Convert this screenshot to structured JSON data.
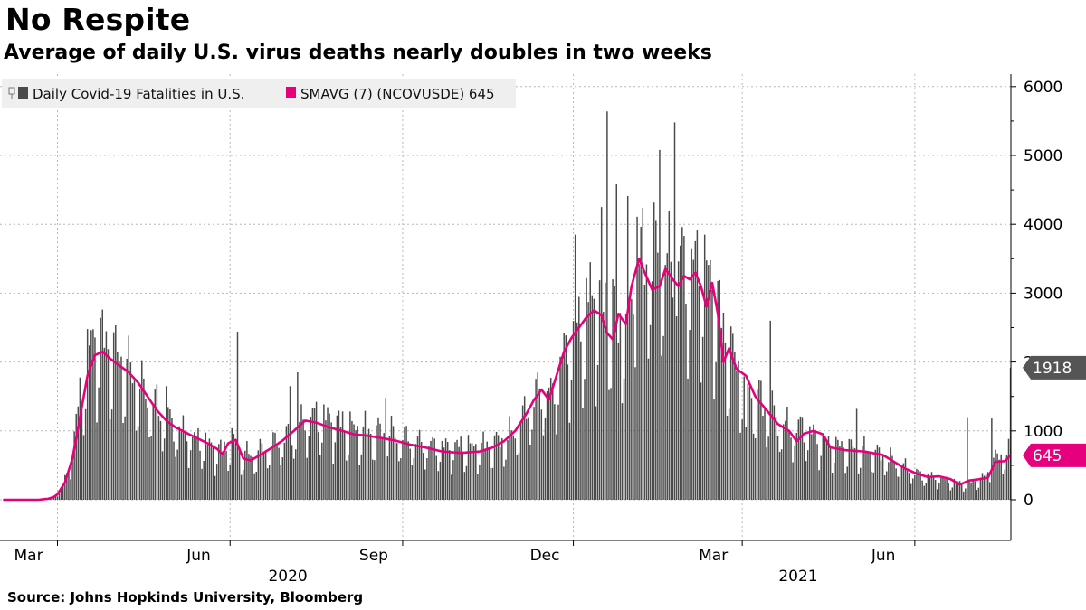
{
  "header": {
    "title": "No Respite",
    "subtitle": "Average of daily U.S. virus deaths nearly doubles in two weeks",
    "source": "Source: Johns Hopkinds University, Bloomberg"
  },
  "colors": {
    "bars": "#4a4a4a",
    "average_line": "#e6007e",
    "grid": "#b8b8b8",
    "bar_tag": "#555555",
    "avg_tag": "#e6007e"
  },
  "chart_data": {
    "type": "bar",
    "title": "Average of daily U.S. virus deaths nearly doubles in two weeks",
    "xlabel": "",
    "ylabel": "",
    "ylim": [
      -550,
      6100
    ],
    "yticks": [
      0,
      1000,
      2000,
      3000,
      4000,
      5000,
      6000
    ],
    "ytick_labels": [
      "0",
      "1000",
      "2000",
      "3000",
      "4000",
      "5000",
      "6000"
    ],
    "x_months": [
      {
        "label": "Mar",
        "day": 0
      },
      {
        "label": "Jun",
        "day": 92
      },
      {
        "label": "Sep",
        "day": 184
      },
      {
        "label": "Dec",
        "day": 275
      },
      {
        "label": "Mar",
        "day": 365
      },
      {
        "label": "Jun",
        "day": 457
      }
    ],
    "x_years": [
      {
        "label": "2020",
        "day": 123
      },
      {
        "label": "2021",
        "day": 395
      }
    ],
    "x_range_days": [
      -29,
      513
    ],
    "grid": true,
    "legend_position": "top-left",
    "legend": [
      {
        "name": "Daily Covid-19 Fatalities in U.S.",
        "marker": "bar"
      },
      {
        "name": "SMAVG (7) (NCOVUSDE) 645",
        "marker": "line"
      }
    ],
    "daily_anchors": [
      [
        -29,
        0
      ],
      [
        -10,
        0
      ],
      [
        -5,
        10
      ],
      [
        -2,
        30
      ],
      [
        0,
        80
      ],
      [
        3,
        200
      ],
      [
        6,
        420
      ],
      [
        9,
        900
      ],
      [
        12,
        1400
      ],
      [
        15,
        1850
      ],
      [
        18,
        2150
      ],
      [
        22,
        2250
      ],
      [
        25,
        2150
      ],
      [
        30,
        2000
      ],
      [
        35,
        1900
      ],
      [
        40,
        1700
      ],
      [
        45,
        1500
      ],
      [
        52,
        1300
      ],
      [
        58,
        1100
      ],
      [
        65,
        950
      ],
      [
        72,
        850
      ],
      [
        80,
        760
      ],
      [
        85,
        690
      ],
      [
        90,
        700
      ],
      [
        93,
        820
      ],
      [
        98,
        650
      ],
      [
        104,
        600
      ],
      [
        110,
        700
      ],
      [
        117,
        780
      ],
      [
        123,
        870
      ],
      [
        128,
        1000
      ],
      [
        135,
        1150
      ],
      [
        142,
        1120
      ],
      [
        150,
        1050
      ],
      [
        160,
        950
      ],
      [
        170,
        930
      ],
      [
        178,
        900
      ],
      [
        186,
        830
      ],
      [
        195,
        760
      ],
      [
        205,
        720
      ],
      [
        215,
        730
      ],
      [
        225,
        720
      ],
      [
        232,
        760
      ],
      [
        238,
        820
      ],
      [
        243,
        900
      ],
      [
        248,
        1100
      ],
      [
        252,
        1300
      ],
      [
        256,
        1450
      ],
      [
        260,
        1550
      ],
      [
        263,
        1380
      ],
      [
        268,
        1850
      ],
      [
        275,
        2250
      ],
      [
        280,
        2450
      ],
      [
        285,
        2650
      ],
      [
        290,
        2750
      ],
      [
        295,
        2650
      ],
      [
        299,
        2350
      ],
      [
        303,
        2600
      ],
      [
        307,
        2800
      ],
      [
        310,
        3100
      ],
      [
        314,
        3400
      ],
      [
        318,
        3300
      ],
      [
        322,
        3250
      ],
      [
        326,
        3150
      ],
      [
        330,
        3300
      ],
      [
        334,
        3200
      ],
      [
        338,
        3150
      ],
      [
        342,
        3250
      ],
      [
        346,
        3100
      ],
      [
        350,
        2850
      ],
      [
        353,
        2550
      ],
      [
        356,
        2200
      ],
      [
        360,
        1950
      ],
      [
        365,
        1700
      ],
      [
        370,
        1500
      ],
      [
        375,
        1350
      ],
      [
        380,
        1200
      ],
      [
        385,
        1050
      ],
      [
        392,
        950
      ],
      [
        397,
        1000
      ],
      [
        403,
        880
      ],
      [
        410,
        760
      ],
      [
        420,
        720
      ],
      [
        430,
        680
      ],
      [
        440,
        600
      ],
      [
        448,
        500
      ],
      [
        456,
        380
      ],
      [
        462,
        330
      ],
      [
        470,
        290
      ],
      [
        478,
        240
      ],
      [
        485,
        230
      ],
      [
        492,
        270
      ],
      [
        496,
        380
      ],
      [
        499,
        530
      ],
      [
        503,
        620
      ],
      [
        506,
        640
      ],
      [
        508,
        645
      ]
    ],
    "daily_spikes": [
      [
        58,
        1650
      ],
      [
        96,
        2440
      ],
      [
        124,
        1650
      ],
      [
        128,
        1850
      ],
      [
        175,
        1480
      ],
      [
        276,
        3850
      ],
      [
        284,
        3450
      ],
      [
        290,
        4250
      ],
      [
        293,
        5640
      ],
      [
        298,
        4580
      ],
      [
        304,
        4410
      ],
      [
        309,
        4110
      ],
      [
        321,
        5080
      ],
      [
        329,
        5480
      ],
      [
        367,
        1050
      ],
      [
        380,
        2600
      ],
      [
        426,
        1320
      ],
      [
        485,
        1200
      ],
      [
        498,
        1180
      ],
      [
        508,
        1918
      ]
    ],
    "average_anchors": [
      [
        -29,
        0
      ],
      [
        -10,
        0
      ],
      [
        -5,
        15
      ],
      [
        -2,
        40
      ],
      [
        0,
        80
      ],
      [
        4,
        250
      ],
      [
        8,
        600
      ],
      [
        12,
        1200
      ],
      [
        16,
        1800
      ],
      [
        20,
        2100
      ],
      [
        24,
        2150
      ],
      [
        28,
        2050
      ],
      [
        33,
        1950
      ],
      [
        38,
        1850
      ],
      [
        43,
        1700
      ],
      [
        48,
        1500
      ],
      [
        53,
        1300
      ],
      [
        58,
        1150
      ],
      [
        63,
        1050
      ],
      [
        68,
        980
      ],
      [
        74,
        900
      ],
      [
        80,
        820
      ],
      [
        85,
        740
      ],
      [
        88,
        660
      ],
      [
        91,
        820
      ],
      [
        95,
        870
      ],
      [
        99,
        600
      ],
      [
        103,
        570
      ],
      [
        108,
        650
      ],
      [
        114,
        750
      ],
      [
        120,
        860
      ],
      [
        126,
        1000
      ],
      [
        132,
        1150
      ],
      [
        138,
        1120
      ],
      [
        145,
        1050
      ],
      [
        152,
        1000
      ],
      [
        158,
        950
      ],
      [
        165,
        930
      ],
      [
        172,
        900
      ],
      [
        180,
        860
      ],
      [
        188,
        800
      ],
      [
        196,
        760
      ],
      [
        205,
        700
      ],
      [
        215,
        680
      ],
      [
        225,
        700
      ],
      [
        232,
        760
      ],
      [
        238,
        850
      ],
      [
        244,
        1000
      ],
      [
        250,
        1250
      ],
      [
        254,
        1450
      ],
      [
        258,
        1600
      ],
      [
        262,
        1450
      ],
      [
        266,
        1800
      ],
      [
        270,
        2150
      ],
      [
        274,
        2350
      ],
      [
        278,
        2500
      ],
      [
        282,
        2650
      ],
      [
        286,
        2750
      ],
      [
        290,
        2680
      ],
      [
        293,
        2420
      ],
      [
        296,
        2330
      ],
      [
        299,
        2700
      ],
      [
        303,
        2550
      ],
      [
        306,
        3100
      ],
      [
        310,
        3500
      ],
      [
        313,
        3300
      ],
      [
        317,
        3050
      ],
      [
        321,
        3100
      ],
      [
        324,
        3350
      ],
      [
        328,
        3200
      ],
      [
        331,
        3100
      ],
      [
        334,
        3250
      ],
      [
        337,
        3200
      ],
      [
        340,
        3300
      ],
      [
        343,
        3100
      ],
      [
        346,
        2800
      ],
      [
        349,
        3150
      ],
      [
        352,
        2700
      ],
      [
        355,
        2000
      ],
      [
        358,
        2200
      ],
      [
        362,
        1900
      ],
      [
        367,
        1800
      ],
      [
        372,
        1500
      ],
      [
        378,
        1300
      ],
      [
        384,
        1100
      ],
      [
        390,
        1000
      ],
      [
        394,
        850
      ],
      [
        398,
        960
      ],
      [
        403,
        1000
      ],
      [
        408,
        950
      ],
      [
        412,
        760
      ],
      [
        420,
        720
      ],
      [
        430,
        700
      ],
      [
        440,
        650
      ],
      [
        446,
        550
      ],
      [
        452,
        450
      ],
      [
        458,
        380
      ],
      [
        464,
        330
      ],
      [
        470,
        340
      ],
      [
        476,
        300
      ],
      [
        481,
        220
      ],
      [
        486,
        280
      ],
      [
        492,
        300
      ],
      [
        496,
        320
      ],
      [
        500,
        550
      ],
      [
        505,
        560
      ],
      [
        508,
        645
      ]
    ],
    "last_value_tags": [
      {
        "series": "Daily Covid-19 Fatalities in U.S.",
        "value": 1918,
        "label": "1918"
      },
      {
        "series": "SMAVG (7) (NCOVUSDE) 645",
        "value": 645,
        "label": "645"
      }
    ]
  }
}
